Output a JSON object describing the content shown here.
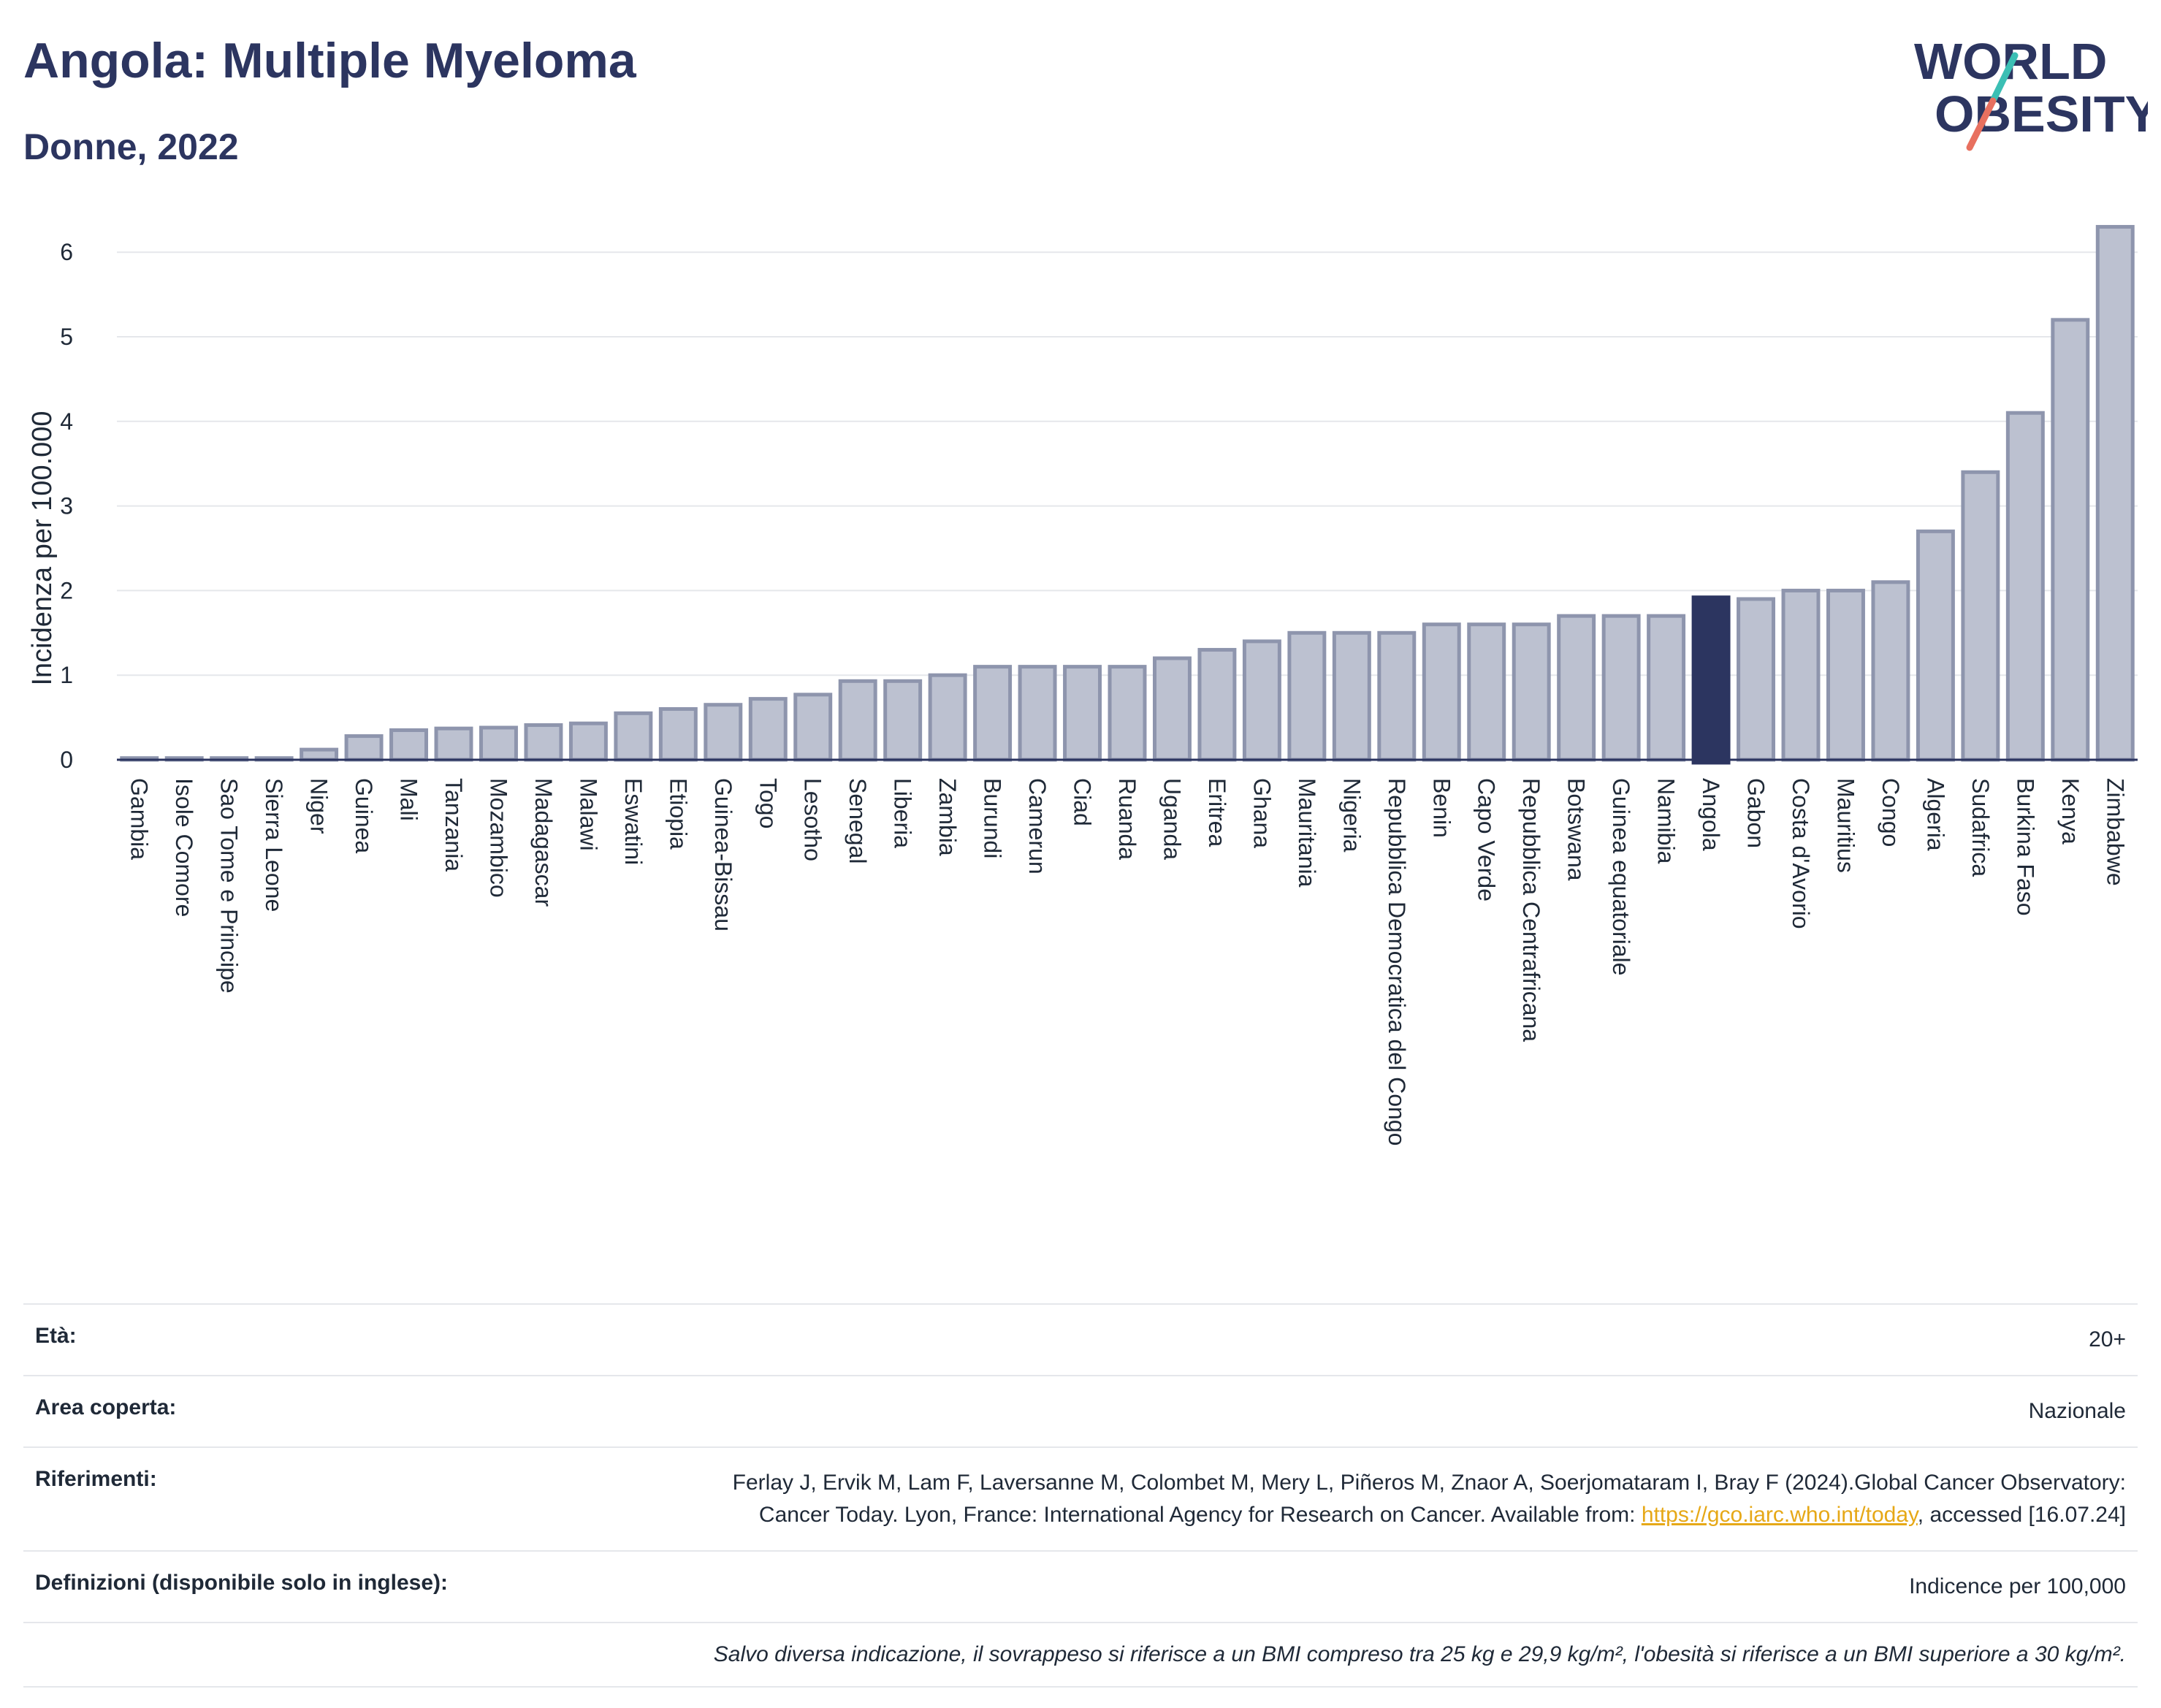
{
  "header": {
    "title": "Angola: Multiple Myeloma",
    "subtitle": "Donne, 2022"
  },
  "logo": {
    "line1": "WORLD",
    "line2": "OBESITY",
    "icon": "world-obesity-logo"
  },
  "chart_data": {
    "type": "bar",
    "ylabel": "Incidenza per 100.000",
    "ylim": [
      0,
      6.5
    ],
    "yticks": [
      0,
      1,
      2,
      3,
      4,
      5,
      6
    ],
    "grid": true,
    "highlight": "Angola",
    "colors": {
      "bar": "#bcc1d0",
      "bar_border": "#8e95ad",
      "highlight": "#2c3560",
      "grid": "#e5e7eb"
    },
    "categories": [
      "Gambia",
      "Isole Comore",
      "Sao Tome e Principe",
      "Sierra Leone",
      "Niger",
      "Guinea",
      "Mali",
      "Tanzania",
      "Mozambico",
      "Madagascar",
      "Malawi",
      "Eswatini",
      "Etiopia",
      "Guinea-Bissau",
      "Togo",
      "Lesotho",
      "Senegal",
      "Liberia",
      "Zambia",
      "Burundi",
      "Camerun",
      "Ciad",
      "Ruanda",
      "Uganda",
      "Eritrea",
      "Ghana",
      "Mauritania",
      "Nigeria",
      "Repubblica Democratica del Congo",
      "Benin",
      "Capo Verde",
      "Repubblica Centrafricana",
      "Botswana",
      "Guinea equatoriale",
      "Namibia",
      "Angola",
      "Gabon",
      "Costa d'Avorio",
      "Mauritius",
      "Congo",
      "Algeria",
      "Sudafrica",
      "Burkina Faso",
      "Kenya",
      "Zimbabwe"
    ],
    "values": [
      0.02,
      0.02,
      0.02,
      0.02,
      0.12,
      0.28,
      0.35,
      0.37,
      0.38,
      0.41,
      0.43,
      0.55,
      0.6,
      0.65,
      0.72,
      0.77,
      0.93,
      0.93,
      1.0,
      1.1,
      1.1,
      1.1,
      1.1,
      1.2,
      1.3,
      1.4,
      1.5,
      1.5,
      1.5,
      1.6,
      1.6,
      1.6,
      1.7,
      1.7,
      1.7,
      1.92,
      1.9,
      2.0,
      2.0,
      2.1,
      2.7,
      3.4,
      4.1,
      5.2,
      6.3
    ]
  },
  "meta": {
    "age_label": "Età:",
    "age_value": "20+",
    "area_label": "Area coperta:",
    "area_value": "Nazionale",
    "refs_label": "Riferimenti:",
    "refs_text_1": "Ferlay J, Ervik M, Lam F, Laversanne M, Colombet M, Mery L, Piñeros M, Znaor A, Soerjomataram I, Bray F (2024).Global Cancer Observatory: Cancer Today. Lyon, France: International Agency for Research on Cancer. Available from: ",
    "refs_link": "https://gco.iarc.who.int/today",
    "refs_text_2": ", accessed [16.07.24]",
    "defs_label": "Definizioni (disponibile solo in inglese):",
    "defs_value": "Indicence per 100,000",
    "note": "Salvo diversa indicazione, il sovrappeso si riferisce a un BMI compreso tra 25 kg e 29,9 kg/m², l'obesità si riferisce a un BMI superiore a 30 kg/m²."
  }
}
